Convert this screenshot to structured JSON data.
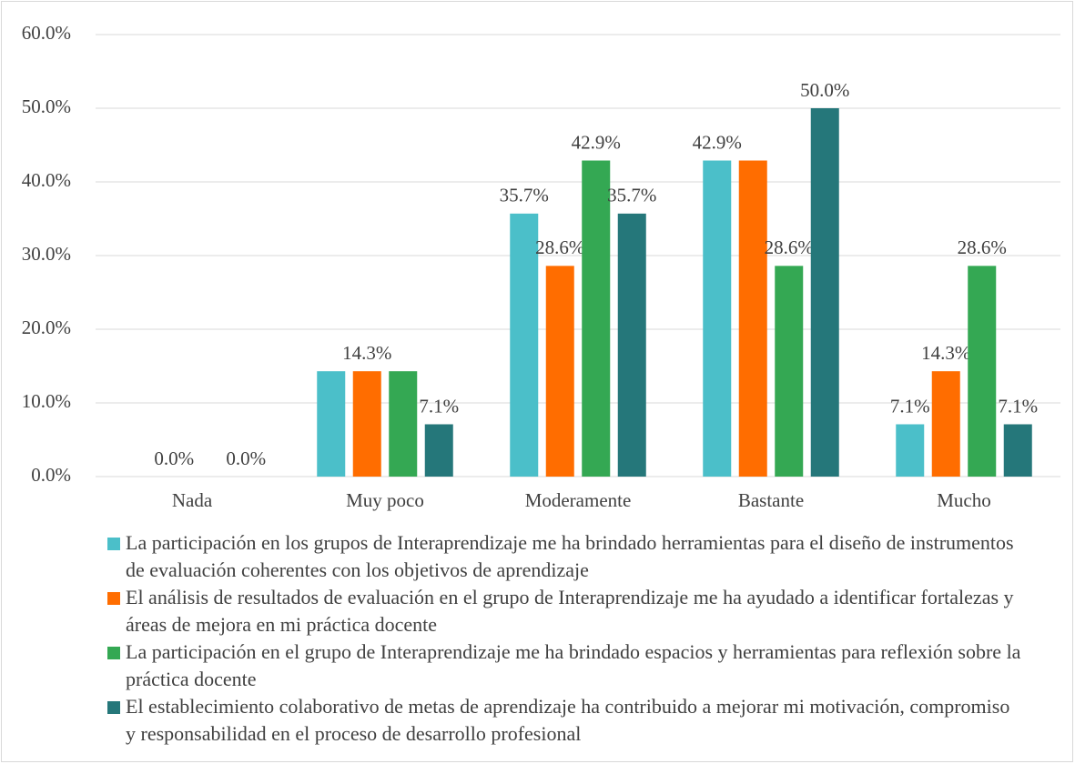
{
  "chart_data": {
    "type": "bar",
    "categories": [
      "Nada",
      "Muy poco",
      "Moderamente",
      "Bastante",
      "Mucho"
    ],
    "series": [
      {
        "name": "La participación en los grupos de Interaprendizaje me ha brindado herramientas para el diseño de instrumentos de evaluación coherentes con los objetivos de aprendizaje",
        "color": "#4bbfc9",
        "values": [
          0,
          14.3,
          35.7,
          42.9,
          7.1
        ],
        "value_labels": [
          null,
          null,
          "35.7%",
          "42.9%",
          "7.1%"
        ]
      },
      {
        "name": "El análisis de resultados de evaluación en el grupo de Interaprendizaje me ha ayudado a identificar fortalezas y áreas de mejora en mi práctica docente",
        "color": "#ff6d00",
        "values": [
          0,
          14.3,
          28.6,
          42.9,
          14.3
        ],
        "value_labels": [
          "0.0%",
          "14.3%",
          "28.6%",
          null,
          "14.3%"
        ]
      },
      {
        "name": "La participación en el grupo de Interaprendizaje me ha brindado espacios y herramientas para reflexión sobre la práctica docente",
        "color": "#34a853",
        "values": [
          0,
          14.3,
          42.9,
          28.6,
          28.6
        ],
        "value_labels": [
          null,
          null,
          "42.9%",
          "28.6%",
          "28.6%"
        ]
      },
      {
        "name": "El establecimiento colaborativo de metas de aprendizaje ha contribuido a mejorar mi motivación, compromiso y responsabilidad en el proceso de desarrollo profesional",
        "color": "#25777a",
        "values": [
          0,
          7.1,
          35.7,
          50.0,
          7.1
        ],
        "value_labels": [
          "0.0%",
          "7.1%",
          "35.7%",
          "50.0%",
          "7.1%"
        ]
      }
    ],
    "ylim": [
      0,
      60
    ],
    "yticks": [
      {
        "value": 0,
        "label": "0.0%"
      },
      {
        "value": 10,
        "label": "10.0%"
      },
      {
        "value": 20,
        "label": "20.0%"
      },
      {
        "value": 30,
        "label": "30.0%"
      },
      {
        "value": 40,
        "label": "40.0%"
      },
      {
        "value": 50,
        "label": "50.0%"
      },
      {
        "value": 60,
        "label": "60.0%"
      }
    ],
    "grid": true,
    "legend": "bottom"
  }
}
